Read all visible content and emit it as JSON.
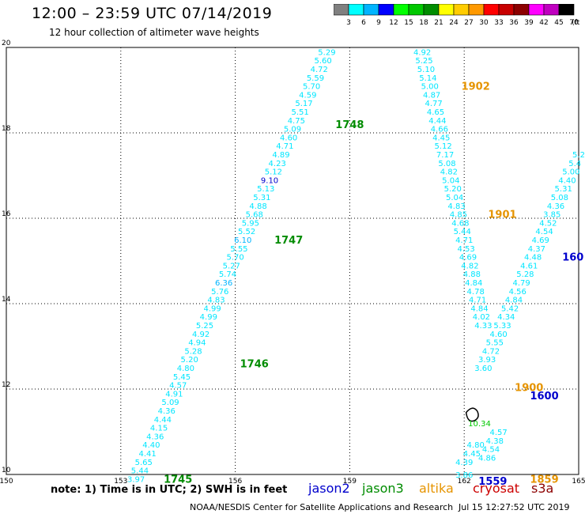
{
  "header": {
    "title": "12:00 – 23:59 UTC 07/14/2019",
    "subtitle": "12 hour collection of altimeter wave heights"
  },
  "scale": {
    "labels": [
      "3",
      "6",
      "9",
      "12",
      "15",
      "18",
      "21",
      "24",
      "27",
      "30",
      "33",
      "36",
      "39",
      "42",
      "45",
      "70",
      "(ft)"
    ],
    "colors": [
      "#808080",
      "#00ffff",
      "#00b4ff",
      "#0000ff",
      "#00ff00",
      "#00c800",
      "#008c00",
      "#ffff00",
      "#ffcc00",
      "#ff9900",
      "#ff0000",
      "#c80000",
      "#8c0000",
      "#ff00ff",
      "#c000c0",
      "#000000"
    ]
  },
  "chart_data": {
    "type": "scatter",
    "title": "12 hour collection of altimeter wave heights",
    "xlim": [
      150,
      165
    ],
    "ylim": [
      10,
      20
    ],
    "xticks": [
      "150",
      "153",
      "156",
      "159",
      "162",
      "165"
    ],
    "yticks": [
      "10",
      "12",
      "14",
      "16",
      "18",
      "20"
    ],
    "grid": true,
    "points": [
      {
        "x": 158.4,
        "y": 19.9,
        "label": "5.29",
        "color": "#00e6ff"
      },
      {
        "x": 158.3,
        "y": 19.7,
        "label": "5.60",
        "color": "#00e6ff"
      },
      {
        "x": 158.2,
        "y": 19.5,
        "label": "4.72",
        "color": "#00e6ff"
      },
      {
        "x": 158.1,
        "y": 19.3,
        "label": "5.59",
        "color": "#00e6ff"
      },
      {
        "x": 158.0,
        "y": 19.1,
        "label": "5.70",
        "color": "#00e6ff"
      },
      {
        "x": 157.9,
        "y": 18.9,
        "label": "4.59",
        "color": "#00e6ff"
      },
      {
        "x": 157.8,
        "y": 18.7,
        "label": "5.17",
        "color": "#00e6ff"
      },
      {
        "x": 157.7,
        "y": 18.5,
        "label": "5.51",
        "color": "#00e6ff"
      },
      {
        "x": 157.6,
        "y": 18.3,
        "label": "4.75",
        "color": "#00e6ff"
      },
      {
        "x": 157.5,
        "y": 18.1,
        "label": "5.09",
        "color": "#00e6ff"
      },
      {
        "x": 157.4,
        "y": 17.9,
        "label": "4.60",
        "color": "#00e6ff"
      },
      {
        "x": 157.3,
        "y": 17.7,
        "label": "4.71",
        "color": "#00e6ff"
      },
      {
        "x": 157.2,
        "y": 17.5,
        "label": "4.89",
        "color": "#00e6ff"
      },
      {
        "x": 157.1,
        "y": 17.3,
        "label": "4.23",
        "color": "#00e6ff"
      },
      {
        "x": 157.0,
        "y": 17.1,
        "label": "5.12",
        "color": "#00e6ff"
      },
      {
        "x": 156.9,
        "y": 16.9,
        "label": "9.10",
        "color": "#0000cc"
      },
      {
        "x": 156.8,
        "y": 16.7,
        "label": "5.13",
        "color": "#00e6ff"
      },
      {
        "x": 156.7,
        "y": 16.5,
        "label": "5.31",
        "color": "#00e6ff"
      },
      {
        "x": 156.6,
        "y": 16.3,
        "label": "4.88",
        "color": "#00e6ff"
      },
      {
        "x": 156.5,
        "y": 16.1,
        "label": "5.68",
        "color": "#00e6ff"
      },
      {
        "x": 156.4,
        "y": 15.9,
        "label": "5.95",
        "color": "#00e6ff"
      },
      {
        "x": 156.3,
        "y": 15.7,
        "label": "5.52",
        "color": "#00e6ff"
      },
      {
        "x": 156.2,
        "y": 15.5,
        "label": "6.10",
        "color": "#00b4ff"
      },
      {
        "x": 156.1,
        "y": 15.3,
        "label": "5.55",
        "color": "#00e6ff"
      },
      {
        "x": 156.0,
        "y": 15.1,
        "label": "5.70",
        "color": "#00e6ff"
      },
      {
        "x": 155.9,
        "y": 14.9,
        "label": "5.27",
        "color": "#00e6ff"
      },
      {
        "x": 155.8,
        "y": 14.7,
        "label": "5.74",
        "color": "#00e6ff"
      },
      {
        "x": 155.7,
        "y": 14.5,
        "label": "6.36",
        "color": "#00b4ff"
      },
      {
        "x": 155.6,
        "y": 14.3,
        "label": "5.76",
        "color": "#00e6ff"
      },
      {
        "x": 155.5,
        "y": 14.1,
        "label": "4.83",
        "color": "#00e6ff"
      },
      {
        "x": 155.4,
        "y": 13.9,
        "label": "4.99",
        "color": "#00e6ff"
      },
      {
        "x": 155.3,
        "y": 13.7,
        "label": "4.99",
        "color": "#00e6ff"
      },
      {
        "x": 155.2,
        "y": 13.5,
        "label": "5.25",
        "color": "#00e6ff"
      },
      {
        "x": 155.1,
        "y": 13.3,
        "label": "4.92",
        "color": "#00e6ff"
      },
      {
        "x": 155.0,
        "y": 13.1,
        "label": "4.94",
        "color": "#00e6ff"
      },
      {
        "x": 154.9,
        "y": 12.9,
        "label": "5.28",
        "color": "#00e6ff"
      },
      {
        "x": 154.8,
        "y": 12.7,
        "label": "5.20",
        "color": "#00e6ff"
      },
      {
        "x": 154.7,
        "y": 12.5,
        "label": "4.80",
        "color": "#00e6ff"
      },
      {
        "x": 154.6,
        "y": 12.3,
        "label": "5.45",
        "color": "#00e6ff"
      },
      {
        "x": 154.5,
        "y": 12.1,
        "label": "4.57",
        "color": "#00e6ff"
      },
      {
        "x": 154.4,
        "y": 11.9,
        "label": "4.91",
        "color": "#00e6ff"
      },
      {
        "x": 154.3,
        "y": 11.7,
        "label": "5.09",
        "color": "#00e6ff"
      },
      {
        "x": 154.2,
        "y": 11.5,
        "label": "4.36",
        "color": "#00e6ff"
      },
      {
        "x": 154.1,
        "y": 11.3,
        "label": "4.44",
        "color": "#00e6ff"
      },
      {
        "x": 154.0,
        "y": 11.1,
        "label": "4.15",
        "color": "#00e6ff"
      },
      {
        "x": 153.9,
        "y": 10.9,
        "label": "4.36",
        "color": "#00e6ff"
      },
      {
        "x": 153.8,
        "y": 10.7,
        "label": "4.40",
        "color": "#00e6ff"
      },
      {
        "x": 153.7,
        "y": 10.5,
        "label": "4.41",
        "color": "#00e6ff"
      },
      {
        "x": 153.6,
        "y": 10.3,
        "label": "5.65",
        "color": "#00e6ff"
      },
      {
        "x": 153.5,
        "y": 10.1,
        "label": "5.44",
        "color": "#00e6ff"
      },
      {
        "x": 153.4,
        "y": 9.9,
        "label": "3.97",
        "color": "#00e6ff"
      },
      {
        "x": 160.9,
        "y": 19.9,
        "label": "4.92",
        "color": "#00e6ff"
      },
      {
        "x": 160.95,
        "y": 19.7,
        "label": "5.25",
        "color": "#00e6ff"
      },
      {
        "x": 161.0,
        "y": 19.5,
        "label": "5.10",
        "color": "#00e6ff"
      },
      {
        "x": 161.05,
        "y": 19.3,
        "label": "5.14",
        "color": "#00e6ff"
      },
      {
        "x": 161.1,
        "y": 19.1,
        "label": "5.00",
        "color": "#00e6ff"
      },
      {
        "x": 161.15,
        "y": 18.9,
        "label": "4.87",
        "color": "#00e6ff"
      },
      {
        "x": 161.2,
        "y": 18.7,
        "label": "4.77",
        "color": "#00e6ff"
      },
      {
        "x": 161.25,
        "y": 18.5,
        "label": "4.65",
        "color": "#00e6ff"
      },
      {
        "x": 161.3,
        "y": 18.3,
        "label": "4.44",
        "color": "#00e6ff"
      },
      {
        "x": 161.35,
        "y": 18.1,
        "label": "4.66",
        "color": "#00e6ff"
      },
      {
        "x": 161.4,
        "y": 17.9,
        "label": "4.45",
        "color": "#00e6ff"
      },
      {
        "x": 161.45,
        "y": 17.7,
        "label": "5.12",
        "color": "#00e6ff"
      },
      {
        "x": 161.5,
        "y": 17.5,
        "label": "7.17",
        "color": "#00e6ff"
      },
      {
        "x": 161.55,
        "y": 17.3,
        "label": "5.08",
        "color": "#00e6ff"
      },
      {
        "x": 161.6,
        "y": 17.1,
        "label": "4.82",
        "color": "#00e6ff"
      },
      {
        "x": 161.65,
        "y": 16.9,
        "label": "5.04",
        "color": "#00e6ff"
      },
      {
        "x": 161.7,
        "y": 16.7,
        "label": "5.20",
        "color": "#00e6ff"
      },
      {
        "x": 161.75,
        "y": 16.5,
        "label": "5.04",
        "color": "#00e6ff"
      },
      {
        "x": 161.8,
        "y": 16.3,
        "label": "4.83",
        "color": "#00e6ff"
      },
      {
        "x": 161.85,
        "y": 16.1,
        "label": "4.85",
        "color": "#00e6ff"
      },
      {
        "x": 161.9,
        "y": 15.9,
        "label": "4.68",
        "color": "#00e6ff"
      },
      {
        "x": 161.95,
        "y": 15.7,
        "label": "5.44",
        "color": "#00e6ff"
      },
      {
        "x": 162.0,
        "y": 15.5,
        "label": "4.71",
        "color": "#00e6ff"
      },
      {
        "x": 162.05,
        "y": 15.3,
        "label": "4.53",
        "color": "#00e6ff"
      },
      {
        "x": 162.1,
        "y": 15.1,
        "label": "4.69",
        "color": "#00e6ff"
      },
      {
        "x": 162.15,
        "y": 14.9,
        "label": "4.82",
        "color": "#00e6ff"
      },
      {
        "x": 162.2,
        "y": 14.7,
        "label": "4.88",
        "color": "#00e6ff"
      },
      {
        "x": 162.25,
        "y": 14.5,
        "label": "4.84",
        "color": "#00e6ff"
      },
      {
        "x": 162.3,
        "y": 14.3,
        "label": "4.78",
        "color": "#00e6ff"
      },
      {
        "x": 162.35,
        "y": 14.1,
        "label": "4.71",
        "color": "#00e6ff"
      },
      {
        "x": 162.4,
        "y": 13.9,
        "label": "4.84",
        "color": "#00e6ff"
      },
      {
        "x": 162.45,
        "y": 13.7,
        "label": "4.02",
        "color": "#00e6ff"
      },
      {
        "x": 162.5,
        "y": 13.5,
        "label": "4.33",
        "color": "#00e6ff"
      },
      {
        "x": 165.0,
        "y": 17.5,
        "label": "5.2",
        "color": "#00e6ff"
      },
      {
        "x": 164.9,
        "y": 17.3,
        "label": "5.4",
        "color": "#00e6ff"
      },
      {
        "x": 164.8,
        "y": 17.1,
        "label": "5.00",
        "color": "#00e6ff"
      },
      {
        "x": 164.7,
        "y": 16.9,
        "label": "4.40",
        "color": "#00e6ff"
      },
      {
        "x": 164.6,
        "y": 16.7,
        "label": "5.31",
        "color": "#00e6ff"
      },
      {
        "x": 164.5,
        "y": 16.5,
        "label": "5.08",
        "color": "#00e6ff"
      },
      {
        "x": 164.4,
        "y": 16.3,
        "label": "4.36",
        "color": "#00e6ff"
      },
      {
        "x": 164.3,
        "y": 16.1,
        "label": "3.85",
        "color": "#00e6ff"
      },
      {
        "x": 164.2,
        "y": 15.9,
        "label": "4.52",
        "color": "#00e6ff"
      },
      {
        "x": 164.1,
        "y": 15.7,
        "label": "4.54",
        "color": "#00e6ff"
      },
      {
        "x": 164.0,
        "y": 15.5,
        "label": "4.69",
        "color": "#00e6ff"
      },
      {
        "x": 163.9,
        "y": 15.3,
        "label": "4.37",
        "color": "#00e6ff"
      },
      {
        "x": 163.8,
        "y": 15.1,
        "label": "4.48",
        "color": "#00e6ff"
      },
      {
        "x": 163.7,
        "y": 14.9,
        "label": "4.61",
        "color": "#00e6ff"
      },
      {
        "x": 163.6,
        "y": 14.7,
        "label": "5.28",
        "color": "#00e6ff"
      },
      {
        "x": 163.5,
        "y": 14.5,
        "label": "4.79",
        "color": "#00e6ff"
      },
      {
        "x": 163.4,
        "y": 14.3,
        "label": "4.56",
        "color": "#00e6ff"
      },
      {
        "x": 163.3,
        "y": 14.1,
        "label": "4.84",
        "color": "#00e6ff"
      },
      {
        "x": 163.2,
        "y": 13.9,
        "label": "5.42",
        "color": "#00e6ff"
      },
      {
        "x": 163.1,
        "y": 13.7,
        "label": "4.34",
        "color": "#00e6ff"
      },
      {
        "x": 163.0,
        "y": 13.5,
        "label": "5.33",
        "color": "#00e6ff"
      },
      {
        "x": 162.9,
        "y": 13.3,
        "label": "4.60",
        "color": "#00e6ff"
      },
      {
        "x": 162.8,
        "y": 13.1,
        "label": "5.55",
        "color": "#00e6ff"
      },
      {
        "x": 162.7,
        "y": 12.9,
        "label": "4.72",
        "color": "#00e6ff"
      },
      {
        "x": 162.6,
        "y": 12.7,
        "label": "3.93",
        "color": "#00e6ff"
      },
      {
        "x": 162.5,
        "y": 12.5,
        "label": "3.60",
        "color": "#00e6ff"
      },
      {
        "x": 162.4,
        "y": 11.2,
        "label": "10.34",
        "color": "#00c800"
      },
      {
        "x": 162.0,
        "y": 10.3,
        "label": "4.39",
        "color": "#00e6ff"
      },
      {
        "x": 162.2,
        "y": 10.5,
        "label": "4.45",
        "color": "#00e6ff"
      },
      {
        "x": 162.3,
        "y": 10.7,
        "label": "4.80",
        "color": "#00e6ff"
      },
      {
        "x": 162.6,
        "y": 10.4,
        "label": "4.86",
        "color": "#00e6ff"
      },
      {
        "x": 162.7,
        "y": 10.6,
        "label": "4.54",
        "color": "#00e6ff"
      },
      {
        "x": 162.8,
        "y": 10.8,
        "label": "4.38",
        "color": "#00e6ff"
      },
      {
        "x": 162.9,
        "y": 11.0,
        "label": "4.57",
        "color": "#00e6ff"
      },
      {
        "x": 162.0,
        "y": 10.0,
        "label": "3.86",
        "color": "#00e6ff"
      }
    ],
    "passes": [
      {
        "text": "1748",
        "x": 159.0,
        "y": 18.2,
        "color": "#008c00"
      },
      {
        "text": "1747",
        "x": 157.4,
        "y": 15.5,
        "color": "#008c00"
      },
      {
        "text": "1746",
        "x": 156.5,
        "y": 12.6,
        "color": "#008c00"
      },
      {
        "text": "1745",
        "x": 154.5,
        "y": 9.9,
        "color": "#008c00"
      },
      {
        "text": "1902",
        "x": 162.3,
        "y": 19.1,
        "color": "#e69400"
      },
      {
        "text": "1901",
        "x": 163.0,
        "y": 16.1,
        "color": "#e69400"
      },
      {
        "text": "1900",
        "x": 163.7,
        "y": 12.05,
        "color": "#e69400"
      },
      {
        "text": "1859",
        "x": 164.1,
        "y": 9.9,
        "color": "#e69400"
      },
      {
        "text": "160",
        "x": 164.85,
        "y": 15.1,
        "color": "#0000cc"
      },
      {
        "text": "1600",
        "x": 164.1,
        "y": 11.85,
        "color": "#0000cc"
      },
      {
        "text": "1559",
        "x": 162.75,
        "y": 9.85,
        "color": "#0000cc"
      }
    ]
  },
  "legend": {
    "note": "note: 1) Time is in UTC; 2) SWH is in feet",
    "missions": [
      {
        "name": "jason2",
        "color": "#0000cc"
      },
      {
        "name": "jason3",
        "color": "#008c00"
      },
      {
        "name": "altika",
        "color": "#e69400"
      },
      {
        "name": "cryosat",
        "color": "#cc0000"
      },
      {
        "name": "s3a",
        "color": "#8c0000"
      }
    ]
  },
  "footer": {
    "org": "NOAA/NESDIS Center for Satellite Applications and Research",
    "timestamp": "Jul 15 12:27:52 UTC 2019"
  }
}
